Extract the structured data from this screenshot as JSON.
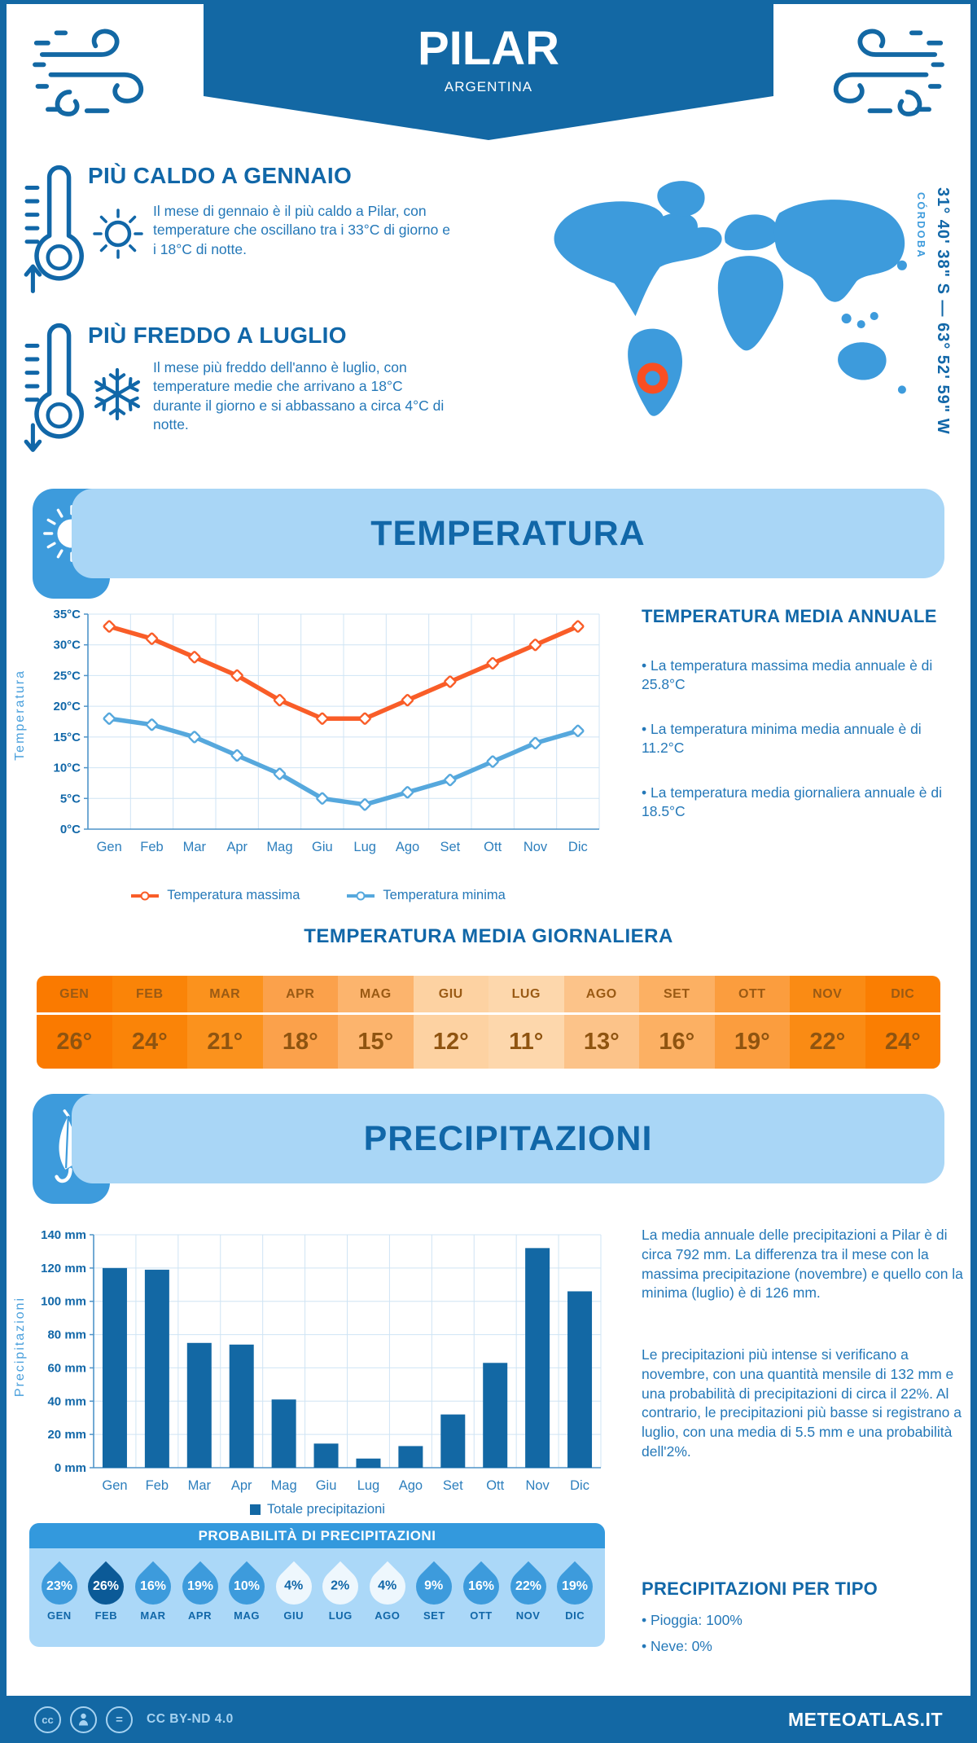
{
  "colors": {
    "dark_blue": "#1368a4",
    "heading_blue": "#1167a8",
    "body_blue": "#2478b8",
    "medium_blue": "#3d9bdc",
    "light_blue_banner": "#a9d6f6",
    "probability_header_blue": "#3399dd",
    "map_marker_orange": "#f94e22",
    "max_line_orange": "#f95d28",
    "min_line_blue": "#56a8dd",
    "bar_blue": "#1368a4"
  },
  "header": {
    "title": "PILAR",
    "subtitle": "ARGENTINA"
  },
  "highlights": [
    {
      "title": "PIÙ CALDO A GENNAIO",
      "text": "Il mese di gennaio è il più caldo a Pilar, con temperature che oscillano tra i 33°C di giorno e i 18°C di notte."
    },
    {
      "title": "PIÙ FREDDO A LUGLIO",
      "text": "Il mese più freddo dell'anno è luglio, con temperature medie che arrivano a 18°C durante il giorno e si abbassano a circa 4°C di notte."
    }
  ],
  "location": {
    "coordinates": "31° 40' 38\" S — 63° 52' 59\" W",
    "region": "CÓRDOBA"
  },
  "temperature_section": {
    "banner": "TEMPERATURA",
    "annual": {
      "title": "TEMPERATURA MEDIA ANNUALE",
      "bullets": [
        "La temperatura massima media annuale è di 25.8°C",
        "La temperatura minima media annuale è di 11.2°C",
        "La temperatura media giornaliera annuale è di 18.5°C"
      ]
    }
  },
  "precipitation_section": {
    "banner": "PRECIPITAZIONI",
    "paragraphs": [
      "La media annuale delle precipitazioni a Pilar è di circa 792 mm. La differenza tra il mese con la massima precipitazione (novembre) e quello con la minima (luglio) è di 126 mm.",
      "Le precipitazioni più intense si verificano a novembre, con una quantità mensile di 132 mm e una probabilità di precipitazioni di circa il 22%. Al contrario, le precipitazioni più basse si registrano a luglio, con una media di 5.5 mm e una probabilità dell'2%."
    ],
    "per_type": {
      "title": "PRECIPITAZIONI PER TIPO",
      "items": [
        "Pioggia: 100%",
        "Neve: 0%"
      ]
    }
  },
  "footer": {
    "license": "CC BY-ND 4.0",
    "brand": "METEOATLAS.IT"
  },
  "chart_data": [
    {
      "type": "line",
      "id": "monthly-temperature",
      "categories": [
        "Gen",
        "Feb",
        "Mar",
        "Apr",
        "Mag",
        "Giu",
        "Lug",
        "Ago",
        "Set",
        "Ott",
        "Nov",
        "Dic"
      ],
      "series": [
        {
          "name": "Temperatura massima",
          "color": "#f95d28",
          "values": [
            33,
            31,
            28,
            25,
            21,
            18,
            18,
            21,
            24,
            27,
            30,
            33
          ]
        },
        {
          "name": "Temperatura minima",
          "color": "#56a8dd",
          "values": [
            18,
            17,
            15,
            12,
            9,
            5,
            4,
            6,
            8,
            11,
            14,
            16
          ]
        }
      ],
      "ylabel": "Temperatura",
      "xlabel": "",
      "unit": "°C",
      "ylim": [
        0,
        35
      ],
      "ytick": 5,
      "grid": true,
      "legend_position": "bottom"
    },
    {
      "type": "bar",
      "id": "monthly-precipitation",
      "categories": [
        "Gen",
        "Feb",
        "Mar",
        "Apr",
        "Mag",
        "Giu",
        "Lug",
        "Ago",
        "Set",
        "Ott",
        "Nov",
        "Dic"
      ],
      "series": [
        {
          "name": "Totale precipitazioni",
          "color": "#1368a4",
          "values": [
            120,
            119,
            75,
            74,
            41,
            14.5,
            5.5,
            13,
            32,
            63,
            132,
            106
          ]
        }
      ],
      "ylabel": "Precipitazioni",
      "xlabel": "",
      "unit": " mm",
      "ylim": [
        0,
        140
      ],
      "ytick": 20,
      "grid": true,
      "legend_position": "bottom"
    },
    {
      "type": "pictogram",
      "id": "precipitation-probability",
      "title": "PROBABILITÀ DI PRECIPITAZIONI",
      "categories": [
        "GEN",
        "FEB",
        "MAR",
        "APR",
        "MAG",
        "GIU",
        "LUG",
        "AGO",
        "SET",
        "OTT",
        "NOV",
        "DIC"
      ],
      "values": [
        23,
        26,
        16,
        19,
        10,
        4,
        2,
        4,
        9,
        16,
        22,
        19
      ],
      "unit": "%",
      "tones": [
        "mid",
        "dark",
        "mid",
        "mid",
        "mid",
        "light",
        "light",
        "light",
        "mid",
        "mid",
        "mid",
        "mid"
      ]
    },
    {
      "type": "table",
      "id": "daily-mean-temperature",
      "title": "TEMPERATURA MEDIA GIORNALIERA",
      "categories": [
        "GEN",
        "FEB",
        "MAR",
        "APR",
        "MAG",
        "GIU",
        "LUG",
        "AGO",
        "SET",
        "OTT",
        "NOV",
        "DIC"
      ],
      "values": [
        "26°",
        "24°",
        "21°",
        "18°",
        "15°",
        "12°",
        "11°",
        "13°",
        "16°",
        "19°",
        "22°",
        "24°"
      ],
      "cell_colors": [
        "#fa7a00",
        "#fa8408",
        "#fb921d",
        "#fba14b",
        "#fcb46d",
        "#fdd2a2",
        "#fdd7ac",
        "#fcc389",
        "#fcb063",
        "#fb9d3e",
        "#fa8b14",
        "#fa7e02"
      ]
    }
  ]
}
